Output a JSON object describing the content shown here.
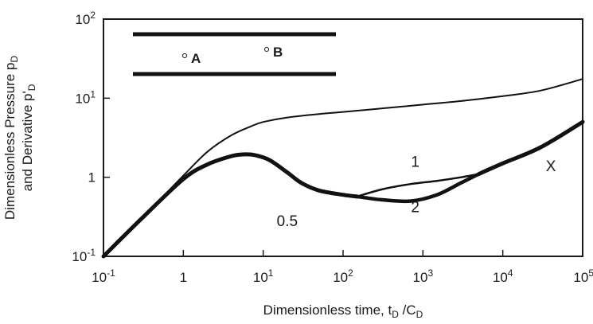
{
  "chart_data": {
    "type": "line",
    "scale": {
      "x": "log",
      "y": "log"
    },
    "xlim": [
      0.1,
      100000
    ],
    "ylim": [
      0.1,
      100
    ],
    "grid": false,
    "xlabel": "Dimensionless time, tD/CD",
    "ylabel": "Dimensionless Pressure pD and Derivative p'D",
    "x_ticks": [
      {
        "base": "10",
        "exp": "-1",
        "plain": "",
        "value": 0.1
      },
      {
        "base": "",
        "exp": "",
        "plain": "1",
        "value": 1
      },
      {
        "base": "10",
        "exp": "1",
        "plain": "",
        "value": 10
      },
      {
        "base": "10",
        "exp": "2",
        "plain": "",
        "value": 100
      },
      {
        "base": "10",
        "exp": "3",
        "plain": "",
        "value": 1000
      },
      {
        "base": "10",
        "exp": "4",
        "plain": "",
        "value": 10000
      },
      {
        "base": "10",
        "exp": "5",
        "plain": "",
        "value": 100000
      }
    ],
    "y_ticks": [
      {
        "base": "10",
        "exp": "-1",
        "plain": "",
        "value": 0.1
      },
      {
        "base": "",
        "exp": "",
        "plain": "1",
        "value": 1
      },
      {
        "base": "10",
        "exp": "1",
        "plain": "",
        "value": 10
      },
      {
        "base": "10",
        "exp": "2",
        "plain": "",
        "value": 100
      }
    ],
    "series": [
      {
        "style": "thin",
        "points": [
          [
            0.1,
            0.1
          ],
          [
            0.3,
            0.3
          ],
          [
            1,
            1.05
          ],
          [
            2,
            2.1
          ],
          [
            4,
            3.4
          ],
          [
            7,
            4.4
          ],
          [
            10,
            5.0
          ],
          [
            20,
            5.7
          ],
          [
            50,
            6.3
          ],
          [
            100,
            6.7
          ],
          [
            300,
            7.4
          ],
          [
            1000,
            8.3
          ],
          [
            3000,
            9.2
          ],
          [
            10000,
            10.6
          ],
          [
            30000,
            12.5
          ],
          [
            100000,
            17.5
          ]
        ]
      },
      {
        "style": "thick-common",
        "points": [
          [
            0.1,
            0.1
          ],
          [
            0.3,
            0.3
          ],
          [
            1,
            0.95
          ],
          [
            2,
            1.45
          ],
          [
            4,
            1.85
          ],
          [
            6,
            1.95
          ],
          [
            8,
            1.9
          ],
          [
            12,
            1.65
          ],
          [
            20,
            1.15
          ],
          [
            30,
            0.85
          ],
          [
            50,
            0.68
          ],
          [
            100,
            0.6
          ],
          [
            150,
            0.57
          ]
        ]
      },
      {
        "style": "thin-branch",
        "points": [
          [
            150,
            0.57
          ],
          [
            300,
            0.7
          ],
          [
            700,
            0.82
          ],
          [
            1500,
            0.9
          ],
          [
            3000,
            1.0
          ],
          [
            5000,
            1.1
          ]
        ]
      },
      {
        "style": "thick-branch",
        "points": [
          [
            150,
            0.57
          ],
          [
            300,
            0.52
          ],
          [
            700,
            0.5
          ],
          [
            1500,
            0.6
          ],
          [
            3000,
            0.85
          ],
          [
            5000,
            1.1
          ]
        ]
      },
      {
        "style": "thick-common",
        "points": [
          [
            5000,
            1.1
          ],
          [
            10000,
            1.5
          ],
          [
            30000,
            2.4
          ],
          [
            100000,
            5.0
          ]
        ]
      }
    ],
    "annotations": [
      {
        "text": "1",
        "x": 800,
        "y": 1.35
      },
      {
        "text": "2",
        "x": 800,
        "y": 0.36
      },
      {
        "text": "0.5",
        "x": 20,
        "y": 0.24
      },
      {
        "text": "X",
        "x": 40000,
        "y": 1.2
      }
    ]
  },
  "inset": {
    "well_a": "A",
    "well_b": "B"
  }
}
